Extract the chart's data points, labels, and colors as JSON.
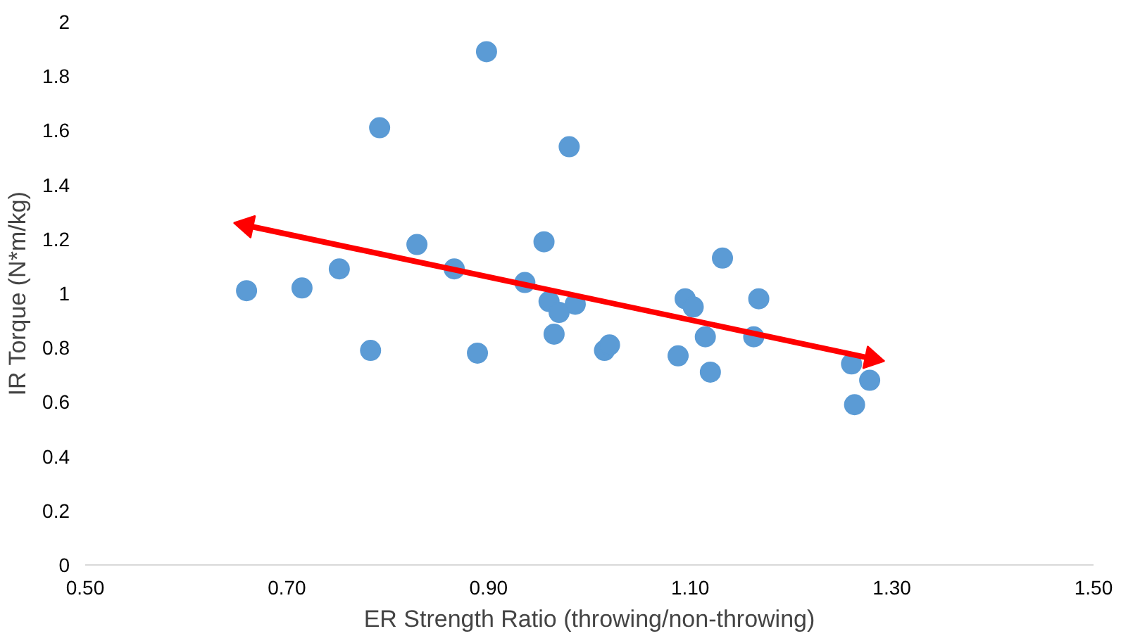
{
  "chart_data": {
    "type": "scatter",
    "xlabel": "ER Strength Ratio (throwing/non-throwing)",
    "ylabel": "IR Torque (N*m/kg)",
    "xlim": [
      0.5,
      1.5
    ],
    "xticks": [
      {
        "value": 0.5,
        "label": "0.50"
      },
      {
        "value": 0.7,
        "label": "0.70"
      },
      {
        "value": 0.9,
        "label": "0.90"
      },
      {
        "value": 1.1,
        "label": "1.10"
      },
      {
        "value": 1.3,
        "label": "1.30"
      },
      {
        "value": 1.5,
        "label": "1.50"
      }
    ],
    "ylim": [
      0,
      2
    ],
    "yticks": [
      0,
      0.2,
      0.4,
      0.6,
      0.8,
      1,
      1.2,
      1.4,
      1.6,
      1.8,
      2
    ],
    "grid": false,
    "marker": "circle",
    "series": [
      {
        "color": "#5b9bd5",
        "x": [
          0.66,
          0.715,
          0.752,
          0.783,
          0.792,
          0.829,
          0.866,
          0.889,
          0.898,
          0.936,
          0.955,
          0.96,
          0.965,
          0.97,
          0.98,
          0.986,
          1.015,
          1.02,
          1.088,
          1.095,
          1.103,
          1.115,
          1.12,
          1.132,
          1.163,
          1.168,
          1.26,
          1.263,
          1.278
        ],
        "values": [
          1.01,
          1.02,
          1.09,
          0.79,
          1.61,
          1.18,
          1.09,
          0.78,
          1.89,
          1.04,
          1.19,
          0.97,
          0.85,
          0.93,
          1.54,
          0.96,
          0.79,
          0.81,
          0.77,
          0.98,
          0.95,
          0.84,
          0.71,
          1.13,
          0.84,
          0.98,
          0.74,
          0.59,
          0.68
        ]
      },
      {
        "type": "line",
        "color": "#ff0000",
        "line_style": "solid",
        "marker": "triangle",
        "x": [
          0.66,
          1.28
        ],
        "values": [
          1.25,
          0.76
        ]
      }
    ]
  }
}
